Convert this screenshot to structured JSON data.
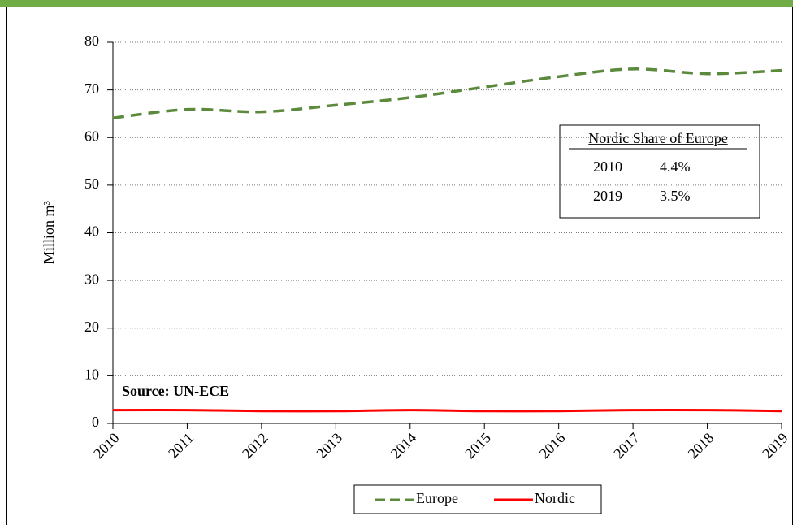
{
  "chart_data": {
    "type": "line",
    "categories": [
      "2010",
      "2011",
      "2012",
      "2013",
      "2014",
      "2015",
      "2016",
      "2017",
      "2018",
      "2019"
    ],
    "series": [
      {
        "name": "Europe",
        "color": "#5b8a3c",
        "dash": true,
        "values": [
          64.1,
          65.9,
          65.4,
          66.8,
          68.4,
          70.6,
          72.8,
          74.4,
          73.4,
          74.1
        ]
      },
      {
        "name": "Nordic",
        "color": "#ff0000",
        "dash": false,
        "values": [
          2.8,
          2.8,
          2.6,
          2.6,
          2.8,
          2.6,
          2.6,
          2.8,
          2.8,
          2.6
        ]
      }
    ],
    "y_label": "Million m³",
    "ylim": [
      0,
      80
    ],
    "yticks": [
      0,
      10,
      20,
      30,
      40,
      50,
      60,
      70,
      80
    ],
    "grid": true,
    "smooth": true,
    "legend": "bottom",
    "annotation": "Source: UN-ECE",
    "share_table": {
      "title": "Nordic Share of Europe",
      "rows": [
        [
          "2010",
          "4.4%"
        ],
        [
          "2019",
          "3.5%"
        ]
      ]
    }
  }
}
